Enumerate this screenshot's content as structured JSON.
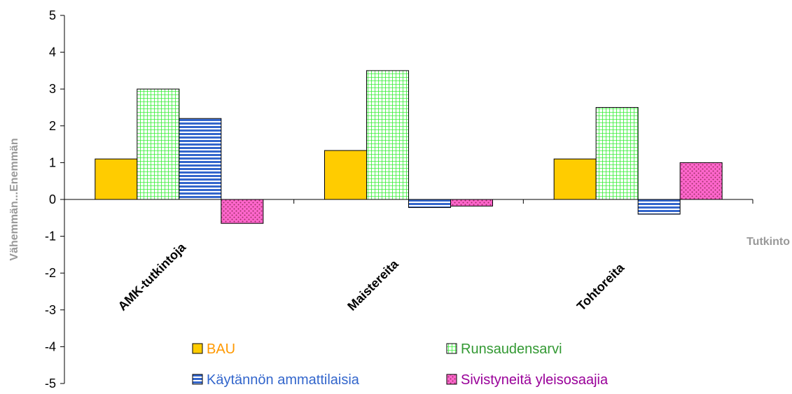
{
  "chart_data": {
    "type": "bar",
    "categories": [
      "AMK-tutkintoja",
      "Maistereita",
      "Tohtoreita"
    ],
    "series": [
      {
        "name": "BAU",
        "values": [
          1.1,
          1.33,
          1.1
        ],
        "color": "#FFCC00",
        "pattern": "solid",
        "label_color": "#FF9900"
      },
      {
        "name": "Runsaudensarvi",
        "values": [
          3.0,
          3.5,
          2.5
        ],
        "color": "#33FF33",
        "pattern": "grid",
        "label_color": "#339933"
      },
      {
        "name": "Käytännön ammattilaisia",
        "values": [
          2.2,
          -0.22,
          -0.4
        ],
        "color": "#3366CC",
        "pattern": "horizontal-stripes",
        "label_color": "#3366CC"
      },
      {
        "name": "Sivistyneitä yleisosaajia",
        "values": [
          -0.65,
          -0.18,
          1.0
        ],
        "color": "#FF66CC",
        "pattern": "dots",
        "label_color": "#990099"
      }
    ],
    "xlabel": "Tutkinto",
    "ylabel": "Vähemmän...Enemmän",
    "ylim": [
      -5,
      5
    ],
    "yticks": [
      "5",
      "4",
      "3",
      "2",
      "1",
      "0",
      "-1",
      "-2",
      "-3",
      "-4",
      "-5"
    ],
    "grid": false,
    "legend_position": "bottom"
  }
}
